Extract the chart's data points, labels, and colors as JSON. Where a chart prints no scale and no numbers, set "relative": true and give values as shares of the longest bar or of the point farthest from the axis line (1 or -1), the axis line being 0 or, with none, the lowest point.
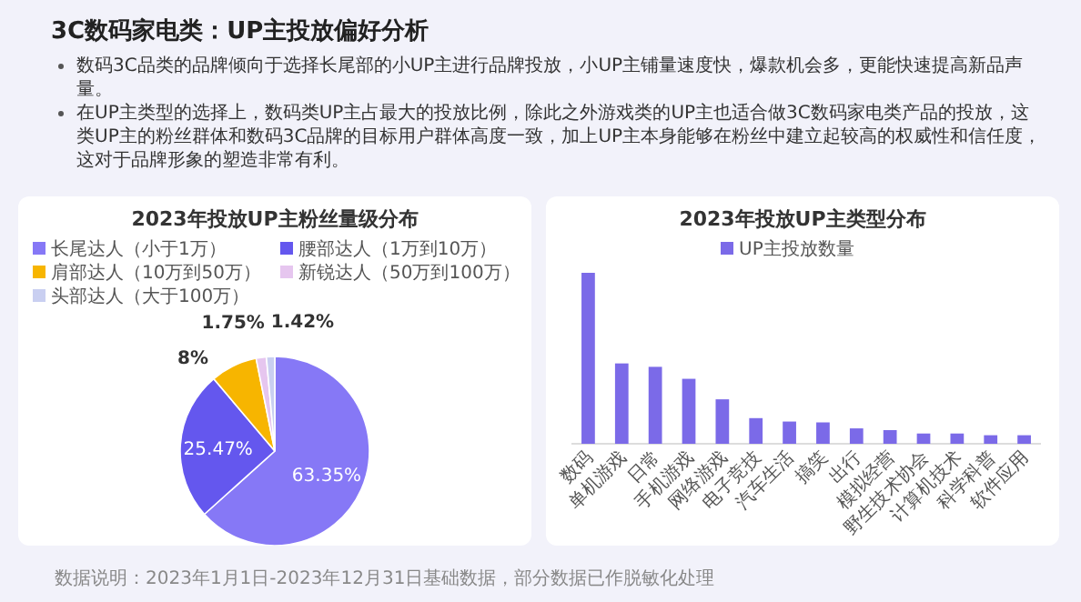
{
  "chart_data": [
    {
      "type": "other",
      "title": "3C数码家电类：UP主投放偏好分析",
      "annotations": [
        "数码3C品类的品牌倾向于选择长尾部的小UP主进行品牌投放，小UP主铺量速度快，爆款机会多，更能快速提高新品声量。",
        "在UP主类型的选择上，数码类UP主占最大的投放比例，除此之外游戏类的UP主也适合做3C数码家电类产品的投放，这类UP主的粉丝群体和数码3C品牌的目标用户群体高度一致，加上UP主本身能够在粉丝中建立起较高的权威性和信任度，这对于品牌形象的塑造非常有利。",
        "数据说明：2023年1月1日-2023年12月31日基础数据，部分数据已作脱敏化处理"
      ]
    },
    {
      "type": "pie",
      "title": "2023年投放UP主粉丝量级分布",
      "legend": "top",
      "categories": [
        "长尾达人（小于1万）",
        "腰部达人（1万到10万）",
        "肩部达人（10万到50万）",
        "新锐达人（50万到100万）",
        "头部达人（大于100万）"
      ],
      "values": [
        63.35,
        25.47,
        8,
        1.75,
        1.42
      ],
      "colors": [
        "#8678f6",
        "#6457ee",
        "#f7b500",
        "#e6c6ef",
        "#c9cff1"
      ],
      "value_labels": [
        "63.35%",
        "25.47%",
        "8%",
        "1.75%",
        "1.42%"
      ]
    },
    {
      "type": "bar",
      "title": "2023年投放UP主类型分布",
      "legend": "top",
      "relative": true,
      "categories": [
        "数码",
        "单机游戏",
        "日常",
        "手机游戏",
        "网络游戏",
        "电子竞技",
        "汽车生活",
        "搞笑",
        "出行",
        "模拟经营",
        "野生技术协会",
        "计算机技术",
        "科学科普",
        "软件应用"
      ],
      "series": [
        {
          "name": "UP主投放数量",
          "color": "#7b6ae8",
          "values": [
            1,
            0.47,
            0.45,
            0.38,
            0.26,
            0.15,
            0.13,
            0.125,
            0.09,
            0.08,
            0.06,
            0.06,
            0.05,
            0.05
          ]
        }
      ]
    }
  ]
}
